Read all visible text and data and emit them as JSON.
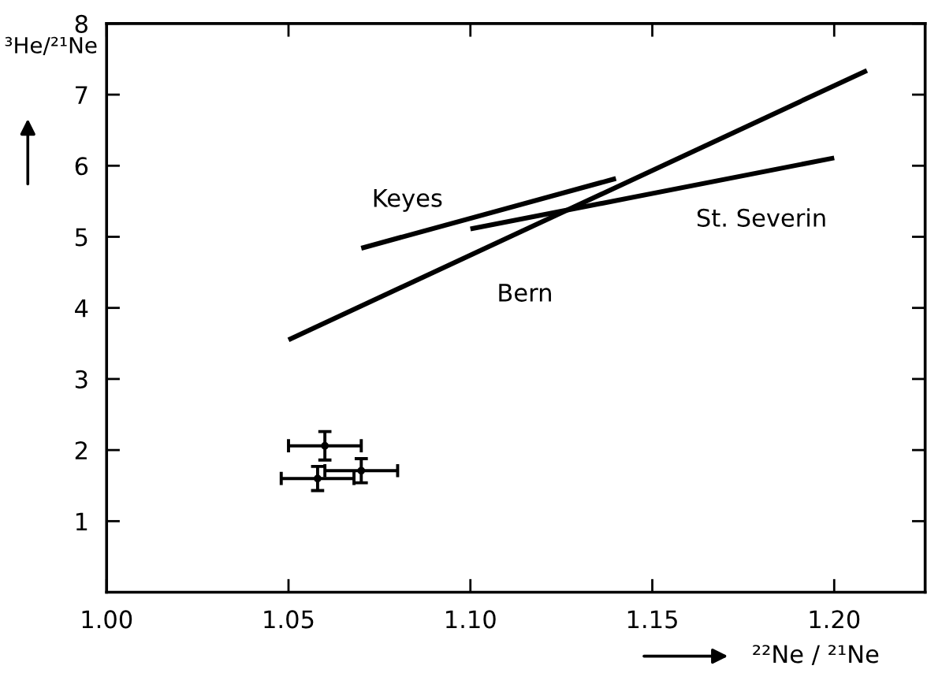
{
  "chart_data": {
    "type": "line",
    "xlabel": "²²Ne / ²¹Ne",
    "ylabel": "³He/²¹Ne",
    "xlim": [
      1.0,
      1.225
    ],
    "ylim": [
      0,
      8
    ],
    "xticks": [
      {
        "value": 1.0,
        "label": "1.00"
      },
      1.05,
      {
        "value": 1.1,
        "label": "1.10"
      },
      1.15,
      {
        "value": 1.2,
        "label": "1.20"
      }
    ],
    "yticks": [
      1,
      2,
      3,
      4,
      5,
      6,
      7,
      8
    ],
    "grid": false,
    "legend": false,
    "line_style": "solid",
    "series": [
      {
        "name": "Keyes",
        "color": "#000000",
        "x": [
          1.07,
          1.14
        ],
        "values": [
          4.84,
          5.82
        ]
      },
      {
        "name": "St. Severin",
        "color": "#000000",
        "x": [
          1.1,
          1.2
        ],
        "values": [
          5.11,
          6.11
        ]
      },
      {
        "name": "Bern",
        "color": "#000000",
        "x": [
          1.05,
          1.209
        ],
        "values": [
          3.55,
          7.34
        ]
      },
      {
        "type": "scatter",
        "color": "#000000",
        "x": [
          1.06,
          1.058,
          1.07
        ],
        "values": [
          2.06,
          1.6,
          1.71
        ],
        "errors": [
          0.2,
          0.17,
          0.17
        ],
        "xerrors": [
          0.01,
          0.01,
          0.01
        ]
      }
    ]
  }
}
